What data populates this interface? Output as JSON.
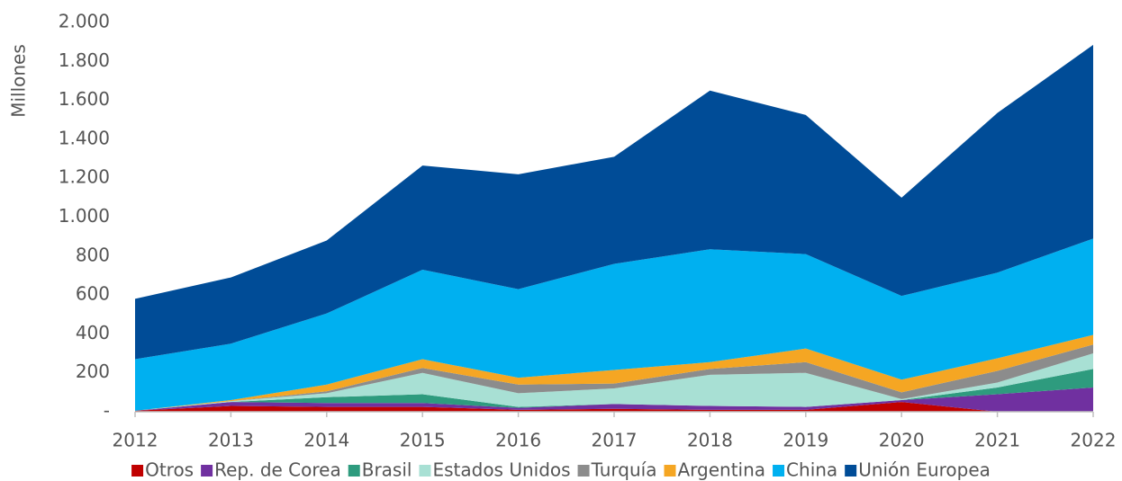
{
  "chart_data": {
    "type": "stacked_area",
    "y_axis_label": "Millones",
    "categories": [
      "2012",
      "2013",
      "2014",
      "2015",
      "2016",
      "2017",
      "2018",
      "2019",
      "2020",
      "2021",
      "2022"
    ],
    "series": [
      {
        "name": "Otros",
        "color": "#c00000",
        "values": [
          5,
          30,
          25,
          25,
          10,
          15,
          10,
          10,
          50,
          0,
          0
        ]
      },
      {
        "name": "Rep. de Corea",
        "color": "#7030a0",
        "values": [
          0,
          20,
          20,
          20,
          10,
          25,
          20,
          15,
          10,
          90,
          125
        ]
      },
      {
        "name": "Brasil",
        "color": "#2e9b7e",
        "values": [
          0,
          0,
          30,
          45,
          5,
          0,
          0,
          0,
          0,
          35,
          95
        ]
      },
      {
        "name": "Estados Unidos",
        "color": "#a8e0d4",
        "values": [
          0,
          5,
          20,
          110,
          70,
          80,
          160,
          175,
          5,
          25,
          80
        ]
      },
      {
        "name": "Turquía",
        "color": "#8c8c8c",
        "values": [
          0,
          0,
          10,
          25,
          45,
          25,
          30,
          55,
          35,
          60,
          45
        ]
      },
      {
        "name": "Argentina",
        "color": "#f5a623",
        "values": [
          0,
          5,
          35,
          45,
          35,
          70,
          35,
          70,
          65,
          65,
          50
        ]
      },
      {
        "name": "China",
        "color": "#00b0f0",
        "values": [
          265,
          290,
          365,
          460,
          455,
          545,
          580,
          485,
          430,
          440,
          495
        ]
      },
      {
        "name": "Unión Europea",
        "color": "#004c97",
        "values": [
          310,
          340,
          375,
          535,
          590,
          550,
          815,
          715,
          505,
          820,
          995
        ]
      }
    ],
    "ylim": [
      0,
      2000
    ],
    "yticks": [
      {
        "value": 0,
        "label": "-"
      },
      200,
      400,
      600,
      800,
      {
        "value": 1000,
        "label": "1.000"
      },
      {
        "value": 1200,
        "label": "1.200"
      },
      {
        "value": 1400,
        "label": "1.400"
      },
      {
        "value": 1600,
        "label": "1.600"
      },
      {
        "value": 1800,
        "label": "1.800"
      },
      {
        "value": 2000,
        "label": "2.000"
      }
    ],
    "grid": false,
    "legend": "bottom"
  }
}
